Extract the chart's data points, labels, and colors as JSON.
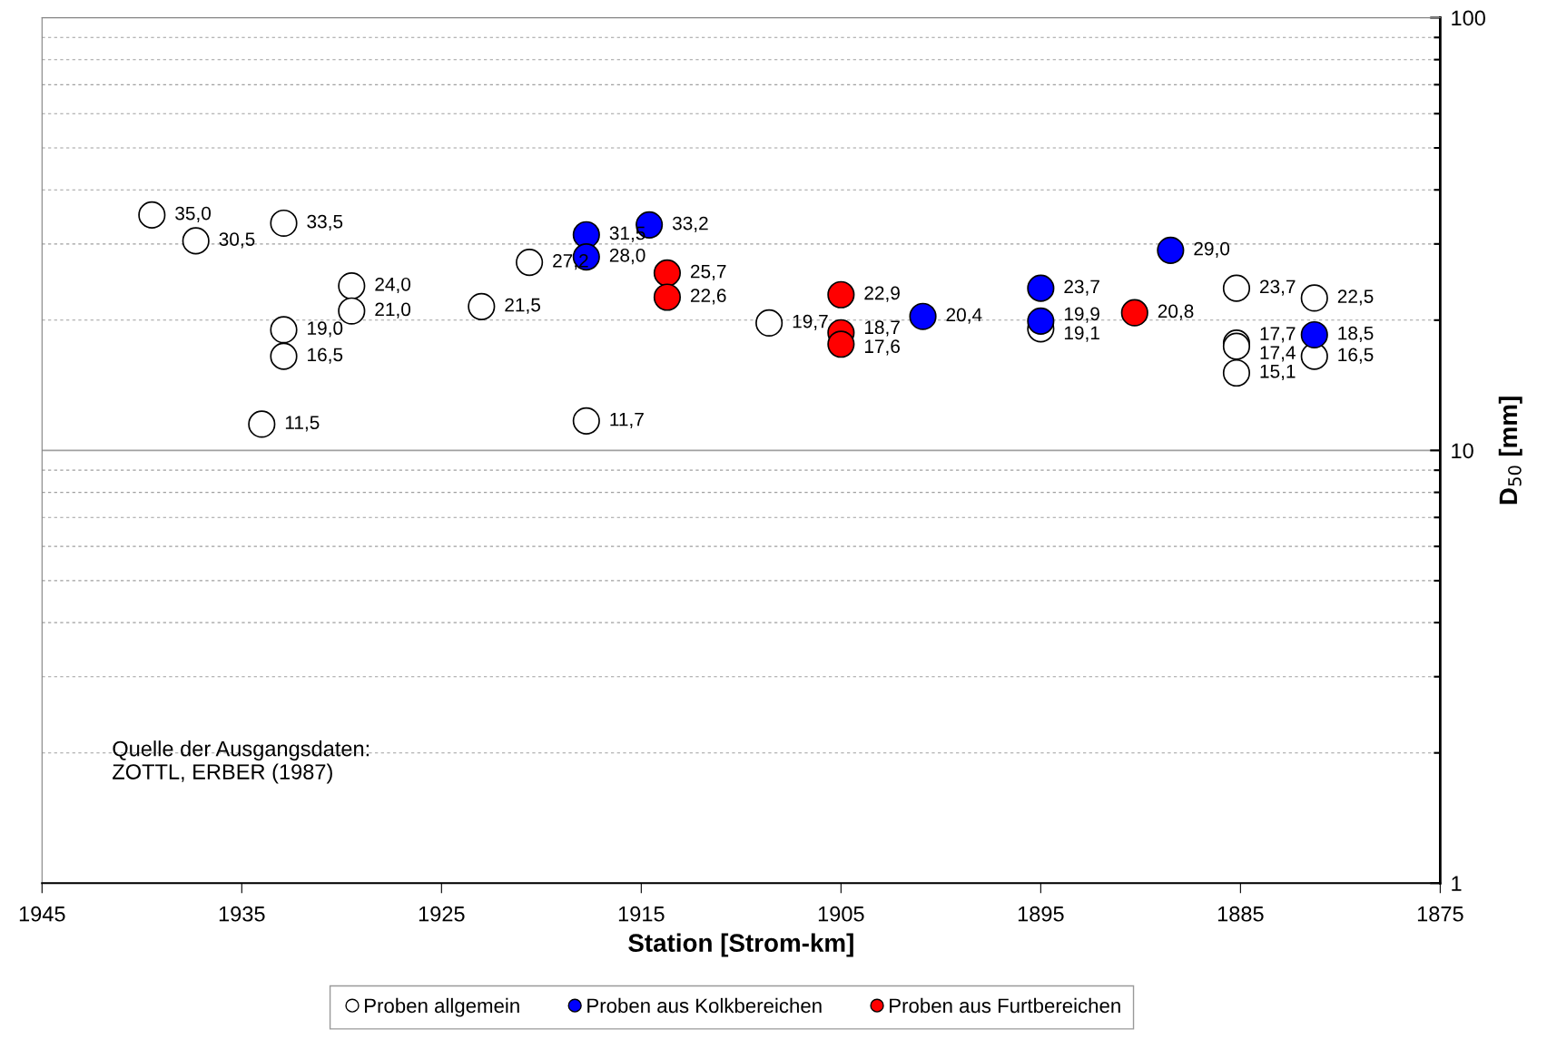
{
  "chart_data": {
    "type": "scatter",
    "xlabel": "Station [Strom-km]",
    "ylabel": "D$_{50}$ [mm]",
    "xlim": [
      1945,
      1875
    ],
    "xticks": [
      1945,
      1935,
      1925,
      1915,
      1905,
      1895,
      1885,
      1875
    ],
    "ylim": [
      1,
      100
    ],
    "yticks": [
      1,
      10,
      100
    ],
    "log": "y",
    "grid": "y",
    "legend": "bottom",
    "marker": "circle",
    "annotations": [
      "Quelle der Ausgangsdaten:\nZOTTL, ERBER (1987)"
    ],
    "series": [
      {
        "name": "Proben allgemein",
        "color": "#ffffff",
        "x": [
          1939.5,
          1937.3,
          1932.9,
          1932.9,
          1932.9,
          1934.0,
          1929.5,
          1929.5,
          1923.0,
          1920.6,
          1917.75,
          1908.6,
          1895.0,
          1885.2,
          1885.2,
          1885.2,
          1885.2,
          1881.3,
          1881.3
        ],
        "values": [
          35.0,
          30.5,
          33.5,
          19.0,
          16.5,
          11.5,
          24.0,
          21.0,
          21.5,
          27.2,
          11.7,
          19.7,
          19.1,
          23.7,
          17.7,
          17.4,
          15.1,
          22.5,
          16.5
        ],
        "value_labels": [
          "35,0",
          "30,5",
          "33,5",
          "19,0",
          "16,5",
          "11,5",
          "24,0",
          "21,0",
          "21,5",
          "27,2",
          "11,7",
          "19,7",
          "19,1",
          "23,7",
          "17,7",
          "17,4",
          "15,1",
          "22,5",
          "16,5"
        ]
      },
      {
        "name": "Proben aus Kolkbereichen",
        "color": "#0000ff",
        "x": [
          1917.75,
          1917.75,
          1914.6,
          1900.9,
          1895.0,
          1895.0,
          1888.5,
          1881.3
        ],
        "values": [
          31.5,
          28.0,
          33.2,
          20.4,
          23.7,
          19.9,
          29.0,
          18.5
        ],
        "value_labels": [
          "31,5",
          "28,0",
          "33,2",
          "20,4",
          "23,7",
          "19,9",
          "29,0",
          "18,5"
        ]
      },
      {
        "name": "Proben aus Furtbereichen",
        "color": "#ff0000",
        "x": [
          1913.7,
          1913.7,
          1905.0,
          1905.0,
          1905.0,
          1890.3
        ],
        "values": [
          25.7,
          22.6,
          22.9,
          18.7,
          17.6,
          20.8
        ],
        "value_labels": [
          "25,7",
          "22,6",
          "22,9",
          "18,7",
          "17,6",
          "20,8"
        ]
      }
    ]
  }
}
